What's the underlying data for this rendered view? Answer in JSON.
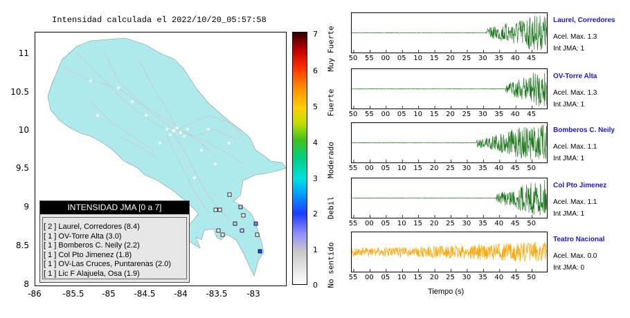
{
  "map": {
    "title": "Intensidad calculada el 2022/10/20_05:57:58",
    "y_ticks": [
      "11",
      "10.5",
      "10",
      "9.5",
      "9",
      "8.5",
      "8"
    ],
    "x_ticks": [
      "-86",
      "-85.5",
      "-85",
      "-84.5",
      "-84",
      "-83.5",
      "-83"
    ],
    "land_color": "#aeeaec",
    "legend": {
      "title": "INTENSIDAD JMA [0 a 7]",
      "items": [
        "[ 2 ]  Laurel, Corredores (8.4)",
        "[ 1 ]  OV-Torre Alta (3.0)",
        "[ 1 ]  Bomberos C. Neily (2.2)",
        "[ 1 ]  Col Pto Jimenez (1.8)",
        "[ 1 ]  OV-Las Cruces, Puntarenas (2.0)",
        "[ 1 ]  Lic F Alajuela, Osa (1.9)"
      ]
    }
  },
  "scale": {
    "numbers": [
      "7",
      "6",
      "5",
      "4",
      "3",
      "2",
      "1",
      "0"
    ],
    "words": [
      "Muy Fuerte",
      "Fuerte",
      "Moderado",
      "Debil",
      "No sentido"
    ]
  },
  "traces": [
    {
      "station": "Laurel, Corredores",
      "accel_label": "Acel. Max. 1.3",
      "int_label": "Int JMA: 1",
      "ticks": [
        "50",
        "55",
        "00",
        "05",
        "10",
        "15",
        "20",
        "25",
        "30",
        "35",
        "40",
        "45"
      ],
      "color": "#1f7a1f",
      "onset": 0.69
    },
    {
      "station": "OV-Torre Alta",
      "accel_label": "Acel. Max. 1.3",
      "int_label": "Int JMA: 1",
      "ticks": [
        "50",
        "55",
        "00",
        "05",
        "10",
        "15",
        "20",
        "25",
        "30",
        "35",
        "40",
        "45"
      ],
      "color": "#1f7a1f",
      "onset": 0.79
    },
    {
      "station": "Bomberos C. Neily",
      "accel_label": "Acel. Max. 1.1",
      "int_label": "Int JMA: 1",
      "ticks": [
        "55",
        "00",
        "05",
        "10",
        "15",
        "20",
        "25",
        "30",
        "35",
        "40",
        "45",
        "50"
      ],
      "color": "#1f7a1f",
      "onset": 0.64
    },
    {
      "station": "Col Pto Jimenez",
      "accel_label": "Acel. Max. 1.1",
      "int_label": "Int JMA: 1",
      "ticks": [
        "55",
        "00",
        "05",
        "10",
        "15",
        "20",
        "25",
        "30",
        "35",
        "40",
        "45",
        "50"
      ],
      "color": "#1f7a1f",
      "onset": 0.74
    },
    {
      "station": "Teatro Nacional",
      "accel_label": "Acel. Max. 0.0",
      "int_label": "Int JMA: 0",
      "ticks": [
        "55",
        "00",
        "05",
        "10",
        "15",
        "20",
        "25",
        "30",
        "35",
        "40",
        "45",
        "50"
      ],
      "color": "#ffa500",
      "onset": 0.0
    }
  ],
  "x_axis_title": "Tiempo (s)"
}
